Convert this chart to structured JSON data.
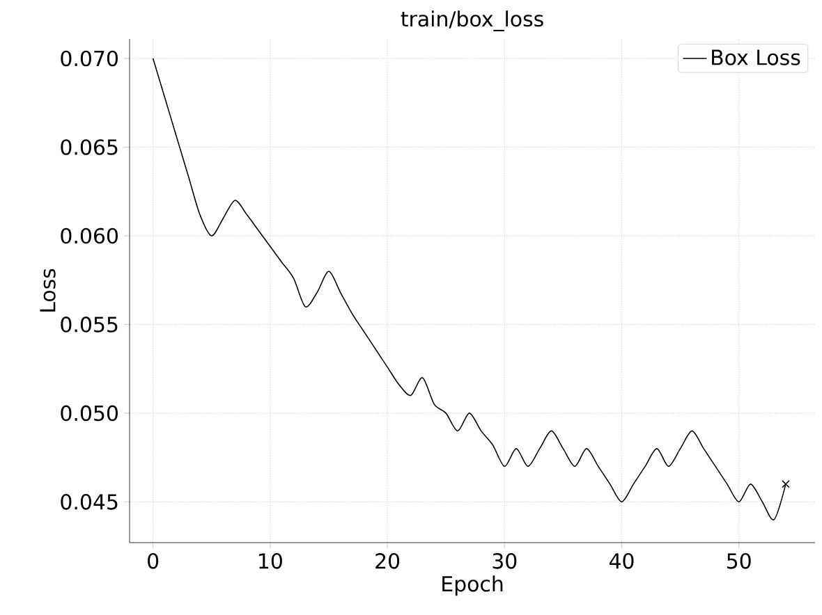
{
  "chart_data": {
    "type": "line",
    "title": "train/box_loss",
    "xlabel": "Epoch",
    "ylabel": "Loss",
    "x": [
      0,
      1,
      2,
      3,
      4,
      5,
      6,
      7,
      8,
      9,
      10,
      11,
      12,
      13,
      14,
      15,
      16,
      17,
      18,
      19,
      20,
      21,
      22,
      23,
      24,
      25,
      26,
      27,
      28,
      29,
      30,
      31,
      32,
      33,
      34,
      35,
      36,
      37,
      38,
      39,
      40,
      41,
      42,
      43,
      44,
      45,
      46,
      47,
      48,
      49,
      50,
      51,
      52,
      53,
      54
    ],
    "series": [
      {
        "name": "Box Loss",
        "color": "#000000",
        "marker": "none",
        "values": [
          0.07,
          0.0678,
          0.0656,
          0.0634,
          0.0612,
          0.06,
          0.061,
          0.062,
          0.0612,
          0.0603,
          0.0594,
          0.0585,
          0.0576,
          0.056,
          0.0568,
          0.058,
          0.0568,
          0.0556,
          0.0546,
          0.0536,
          0.0526,
          0.0516,
          0.051,
          0.052,
          0.0505,
          0.05,
          0.049,
          0.05,
          0.049,
          0.0482,
          0.047,
          0.048,
          0.047,
          0.048,
          0.049,
          0.048,
          0.047,
          0.048,
          0.047,
          0.046,
          0.045,
          0.046,
          0.047,
          0.048,
          0.047,
          0.048,
          0.049,
          0.048,
          0.047,
          0.046,
          0.045,
          0.046,
          0.045,
          0.044,
          0.046
        ]
      },
      {
        "color": "#000000",
        "type": "scatter",
        "marker": "cross",
        "x": [
          54
        ],
        "values": [
          0.046
        ]
      }
    ],
    "xlim": [
      -2,
      56.5
    ],
    "ylim": [
      0.0427,
      0.0711
    ],
    "xticks": [
      0,
      10,
      20,
      30,
      40,
      50
    ],
    "yticks": [
      {
        "value": 0.045,
        "label": "0.045"
      },
      {
        "value": 0.05,
        "label": "0.050"
      },
      {
        "value": 0.055,
        "label": "0.055"
      },
      {
        "value": 0.06,
        "label": "0.060"
      },
      {
        "value": 0.065,
        "label": "0.065"
      },
      {
        "value": 0.07,
        "label": "0.070"
      }
    ],
    "grid": true,
    "legend": "top right"
  }
}
